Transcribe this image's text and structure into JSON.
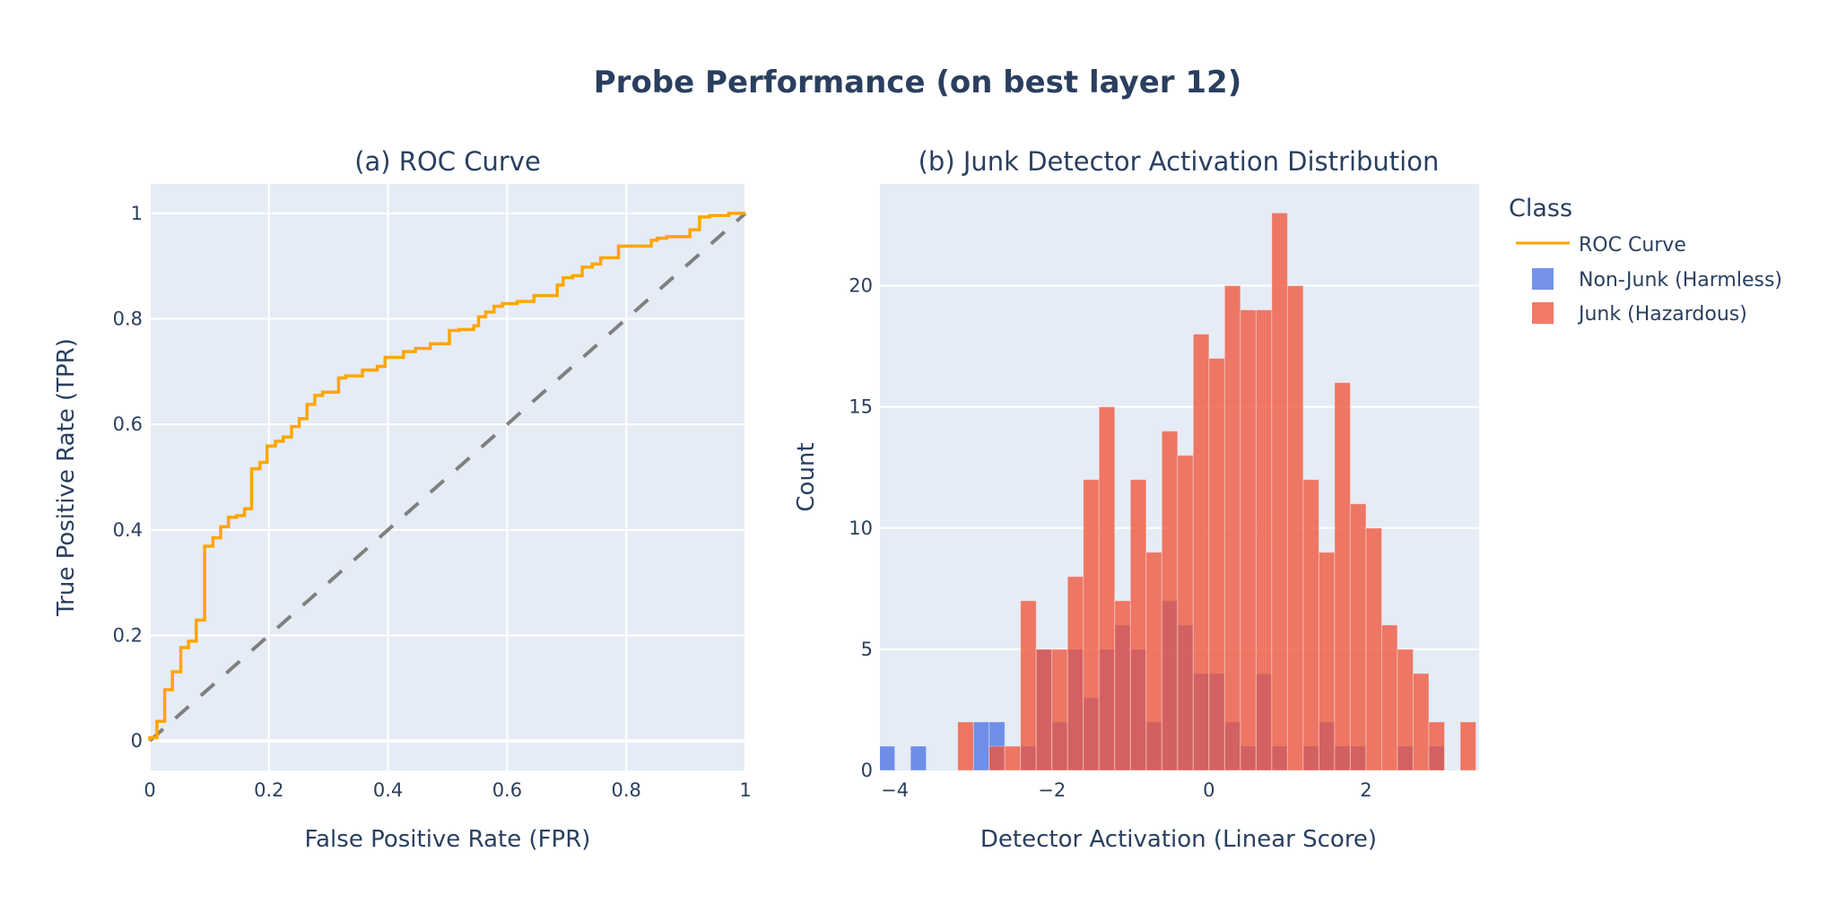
{
  "title": "Probe Performance (on best layer 12)",
  "colors": {
    "roc": "#FFA500",
    "diagonal": "#808080",
    "non_junk": "#4169E1",
    "junk": "#EF553B",
    "plot_bg": "#E5ECF6",
    "text": "#2a3f5f"
  },
  "legend": {
    "title": "Class",
    "items": [
      {
        "label": "ROC Curve",
        "type": "line"
      },
      {
        "label": "Non-Junk (Harmless)",
        "type": "box"
      },
      {
        "label": "Junk (Hazardous)",
        "type": "box"
      }
    ]
  },
  "chart_data": [
    {
      "type": "line",
      "title": "(a) ROC Curve",
      "xlabel": "False Positive Rate (FPR)",
      "ylabel": "True Positive Rate (TPR)",
      "xlim": [
        0,
        1
      ],
      "ylim": [
        -0.056,
        1.056
      ],
      "grid": true,
      "xticks": [
        0,
        0.2,
        0.4,
        0.6,
        0.8,
        1
      ],
      "xtick_labels": [
        "0",
        "0.2",
        "0.4",
        "0.6",
        "0.8",
        "1"
      ],
      "yticks": [
        0,
        0.2,
        0.4,
        0.6,
        0.8,
        1
      ],
      "ytick_labels": [
        "0",
        "0.2",
        "0.4",
        "0.6",
        "0.8",
        "1"
      ],
      "series": [
        {
          "name": "ROC Curve",
          "shape": "step",
          "x": [
            0,
            0.012,
            0.025,
            0.038,
            0.052,
            0.065,
            0.078,
            0.092,
            0.106,
            0.119,
            0.132,
            0.146,
            0.159,
            0.171,
            0.185,
            0.197,
            0.211,
            0.224,
            0.238,
            0.251,
            0.264,
            0.277,
            0.29,
            0.317,
            0.329,
            0.357,
            0.382,
            0.395,
            0.426,
            0.446,
            0.471,
            0.503,
            0.519,
            0.544,
            0.552,
            0.564,
            0.578,
            0.592,
            0.617,
            0.645,
            0.684,
            0.694,
            0.71,
            0.726,
            0.743,
            0.757,
            0.787,
            0.842,
            0.852,
            0.868,
            0.907,
            0.923,
            0.94,
            0.972,
            1
          ],
          "y": [
            0.006,
            0.037,
            0.097,
            0.131,
            0.177,
            0.189,
            0.229,
            0.369,
            0.385,
            0.406,
            0.424,
            0.427,
            0.44,
            0.516,
            0.528,
            0.559,
            0.568,
            0.576,
            0.596,
            0.611,
            0.638,
            0.655,
            0.661,
            0.688,
            0.692,
            0.703,
            0.71,
            0.727,
            0.738,
            0.744,
            0.753,
            0.778,
            0.78,
            0.787,
            0.804,
            0.813,
            0.824,
            0.829,
            0.833,
            0.844,
            0.864,
            0.878,
            0.882,
            0.898,
            0.904,
            0.916,
            0.938,
            0.949,
            0.953,
            0.956,
            0.969,
            0.993,
            0.996,
            1.0,
            1.0
          ]
        },
        {
          "shape": "dashed",
          "x": [
            0,
            1
          ],
          "y": [
            0,
            1
          ]
        }
      ]
    },
    {
      "type": "bar",
      "title": "(b) Junk Detector Activation Distribution",
      "xlabel": "Detector Activation (Linear Score)",
      "ylabel": "Count",
      "barmode": "overlay",
      "xlim": [
        -4.19,
        3.44
      ],
      "ylim": [
        0,
        24.2
      ],
      "grid": true,
      "xticks": [
        -4,
        -2,
        0,
        2
      ],
      "xtick_labels": [
        "−4",
        "−2",
        "0",
        "2"
      ],
      "yticks": [
        0,
        5,
        10,
        15,
        20
      ],
      "ytick_labels": [
        "0",
        "5",
        "10",
        "15",
        "20"
      ],
      "bin_start": -4.2,
      "bin_width": 0.2,
      "series": [
        {
          "name": "Non-Junk (Harmless)",
          "values": [
            1,
            0,
            1,
            0,
            0,
            0,
            2,
            2,
            0,
            1,
            5,
            2,
            5,
            3,
            5,
            6,
            5,
            2,
            7,
            6,
            4,
            4,
            2,
            1,
            4,
            1,
            0,
            1,
            2,
            1,
            1,
            0,
            0,
            1,
            0,
            1,
            0,
            0
          ]
        },
        {
          "name": "Junk (Hazardous)",
          "values": [
            0,
            0,
            0,
            0,
            0,
            2,
            0,
            1,
            1,
            7,
            5,
            5,
            8,
            12,
            15,
            7,
            12,
            9,
            14,
            13,
            18,
            17,
            20,
            19,
            19,
            23,
            20,
            12,
            9,
            16,
            11,
            10,
            6,
            5,
            4,
            2,
            0,
            2
          ]
        }
      ]
    }
  ]
}
